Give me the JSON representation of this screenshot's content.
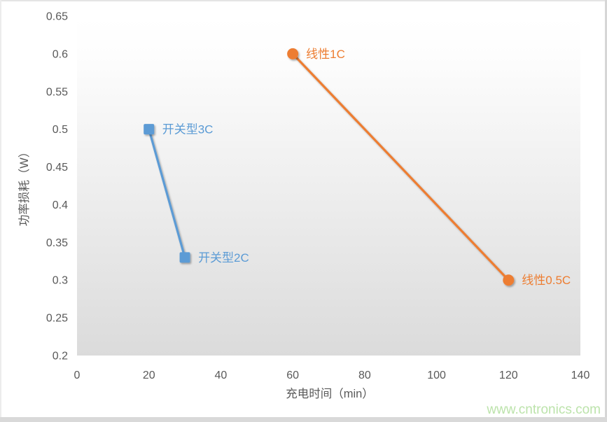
{
  "chart_data": {
    "type": "line",
    "title": "",
    "xlabel": "充电时间（min）",
    "ylabel": "功率损耗（W）",
    "x_axis": {
      "min": 0,
      "max": 140,
      "tick_step": 20,
      "ticks": [
        "0",
        "20",
        "40",
        "60",
        "80",
        "100",
        "120",
        "140"
      ]
    },
    "y_axis": {
      "min": 0.2,
      "max": 0.65,
      "tick_step": 0.05,
      "ticks": [
        "0.2",
        "0.25",
        "0.3",
        "0.35",
        "0.4",
        "0.45",
        "0.5",
        "0.55",
        "0.6",
        "0.65"
      ]
    },
    "grid": false,
    "legend_position": "none",
    "axis_label_color": "#595959",
    "plot_background": {
      "top_color": "#ffffff",
      "bottom_color": "#dbdbdb",
      "style": "vertical-gradient"
    },
    "series": [
      {
        "name": "开关型",
        "color": "#5B9BD5",
        "marker": "square",
        "points": [
          {
            "x": 20,
            "y": 0.5,
            "label": "开关型3C"
          },
          {
            "x": 30,
            "y": 0.33,
            "label": "开关型2C"
          }
        ]
      },
      {
        "name": "线性",
        "color": "#ED7D31",
        "marker": "circle",
        "points": [
          {
            "x": 60,
            "y": 0.6,
            "label": "线性1C"
          },
          {
            "x": 120,
            "y": 0.3,
            "label": "线性0.5C"
          }
        ]
      }
    ]
  },
  "watermark": {
    "text": "www.cntronics.com",
    "color": "#BCE3AB"
  }
}
